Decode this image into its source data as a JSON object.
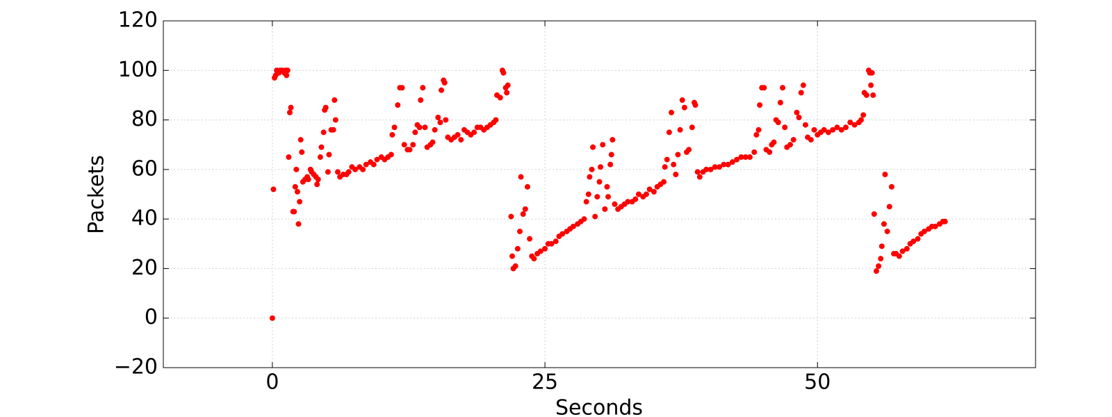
{
  "chart_data": {
    "type": "scatter",
    "xlabel": "Seconds",
    "ylabel": "Packets",
    "color": "#ff0000",
    "grid": true,
    "xlim": [
      -10,
      70
    ],
    "xticks": [
      0,
      25,
      50
    ],
    "ylim": [
      -20,
      120
    ],
    "yticks": [
      {
        "value": -20,
        "label": "−20"
      },
      0,
      20,
      40,
      60,
      80,
      100,
      120
    ],
    "x": [
      0,
      0.1,
      0.2,
      0.3,
      0.4,
      0.6,
      0.7,
      0.9,
      1.1,
      1.2,
      1.3,
      1.4,
      1.5,
      1.6,
      1.7,
      1.9,
      2.0,
      2.1,
      2.2,
      2.3,
      2.4,
      2.5,
      2.6,
      2.7,
      2.8,
      3.0,
      3.2,
      3.3,
      3.5,
      3.6,
      3.8,
      4.0,
      4.1,
      4.2,
      4.4,
      4.5,
      4.7,
      4.8,
      4.9,
      5.1,
      5.2,
      5.4,
      5.6,
      5.7,
      5.8,
      6.0,
      6.2,
      6.5,
      6.8,
      7.0,
      7.3,
      7.6,
      8.0,
      8.3,
      8.6,
      9.0,
      9.3,
      9.6,
      10.0,
      10.3,
      10.6,
      10.9,
      11.0,
      11.2,
      11.5,
      11.7,
      11.9,
      12.1,
      12.4,
      12.6,
      12.9,
      13.1,
      13.3,
      13.5,
      13.6,
      13.8,
      14.0,
      14.2,
      14.5,
      14.7,
      14.9,
      15.2,
      15.4,
      15.5,
      15.7,
      15.8,
      15.9,
      16.1,
      16.4,
      16.7,
      17.0,
      17.3,
      17.6,
      17.9,
      18.2,
      18.5,
      18.8,
      19.1,
      19.4,
      19.7,
      20.0,
      20.3,
      20.5,
      20.6,
      20.9,
      21.1,
      21.2,
      21.4,
      21.5,
      21.6,
      21.9,
      22.0,
      22.1,
      22.3,
      22.5,
      22.7,
      22.8,
      23.0,
      23.2,
      23.4,
      23.6,
      23.8,
      24.0,
      24.3,
      24.6,
      25.0,
      25.3,
      25.6,
      26.0,
      26.3,
      26.6,
      27.0,
      27.3,
      27.6,
      28.0,
      28.3,
      28.6,
      28.8,
      29.0,
      29.1,
      29.3,
      29.4,
      29.6,
      29.8,
      30.0,
      30.1,
      30.3,
      30.5,
      30.7,
      30.8,
      31.0,
      31.1,
      31.2,
      31.4,
      31.7,
      32.0,
      32.3,
      32.6,
      33.0,
      33.3,
      33.6,
      34.0,
      34.3,
      34.6,
      35.0,
      35.3,
      35.6,
      35.9,
      36.0,
      36.2,
      36.4,
      36.6,
      36.8,
      37.0,
      37.2,
      37.4,
      37.6,
      37.8,
      38.0,
      38.2,
      38.5,
      38.7,
      38.8,
      39.0,
      39.2,
      39.5,
      39.8,
      40.2,
      40.6,
      41.0,
      41.4,
      41.8,
      42.2,
      42.6,
      43.0,
      43.4,
      43.8,
      44.2,
      44.4,
      44.6,
      44.7,
      44.9,
      45.1,
      45.3,
      45.6,
      45.8,
      46.0,
      46.2,
      46.4,
      46.6,
      46.8,
      47.0,
      47.2,
      47.5,
      47.8,
      48.1,
      48.3,
      48.5,
      48.7,
      48.9,
      49.1,
      49.4,
      49.7,
      50.0,
      50.3,
      50.6,
      51.0,
      51.4,
      51.8,
      52.2,
      52.6,
      53.0,
      53.4,
      53.8,
      54.0,
      54.2,
      54.3,
      54.5,
      54.7,
      54.8,
      54.9,
      55.0,
      55.1,
      55.2,
      55.4,
      55.6,
      55.8,
      55.9,
      56.1,
      56.2,
      56.4,
      56.6,
      56.8,
      57.0,
      57.2,
      57.5,
      57.8,
      58.2,
      58.5,
      58.8,
      59.2,
      59.5,
      59.8,
      60.2,
      60.5,
      60.8,
      61.2,
      61.5,
      61.7
    ],
    "values": [
      0,
      52,
      97,
      98,
      100,
      99,
      100,
      100,
      99,
      100,
      98,
      100,
      65,
      83,
      85,
      43,
      43,
      53,
      60,
      51,
      38,
      47,
      72,
      67,
      55,
      56,
      57,
      56,
      60,
      59,
      58,
      57,
      54,
      56,
      65,
      69,
      75,
      84,
      85,
      59,
      66,
      76,
      76,
      88,
      80,
      59,
      57,
      58,
      58,
      59,
      61,
      60,
      61,
      60,
      62,
      63,
      62,
      64,
      65,
      64,
      65,
      66,
      74,
      77,
      86,
      93,
      93,
      70,
      68,
      68,
      70,
      75,
      78,
      77,
      88,
      93,
      77,
      69,
      70,
      71,
      76,
      81,
      79,
      92,
      96,
      95,
      80,
      73,
      72,
      73,
      74,
      72,
      76,
      75,
      74,
      75,
      77,
      77,
      76,
      77,
      78,
      79,
      80,
      90,
      89,
      100,
      99,
      93,
      91,
      94,
      41,
      25,
      20,
      21,
      28,
      35,
      57,
      42,
      44,
      53,
      32,
      25,
      24,
      26,
      27,
      28,
      30,
      30,
      31,
      33,
      34,
      35,
      36,
      37,
      38,
      39,
      40,
      47,
      50,
      57,
      60,
      69,
      41,
      49,
      55,
      61,
      70,
      44,
      53,
      49,
      62,
      66,
      72,
      46,
      44,
      45,
      46,
      47,
      47,
      48,
      50,
      49,
      50,
      52,
      51,
      53,
      54,
      55,
      61,
      64,
      75,
      83,
      62,
      58,
      66,
      76,
      88,
      85,
      67,
      68,
      77,
      87,
      86,
      59,
      57,
      59,
      60,
      60,
      61,
      61,
      62,
      62,
      63,
      64,
      65,
      65,
      65,
      67,
      74,
      76,
      86,
      93,
      93,
      68,
      67,
      70,
      71,
      80,
      79,
      87,
      93,
      77,
      69,
      70,
      72,
      83,
      81,
      91,
      94,
      78,
      73,
      72,
      76,
      74,
      75,
      76,
      75,
      76,
      77,
      76,
      77,
      79,
      78,
      79,
      80,
      82,
      91,
      90,
      100,
      99,
      94,
      99,
      90,
      42,
      19,
      21,
      24,
      29,
      38,
      58,
      35,
      45,
      53,
      26,
      26,
      25,
      27,
      28,
      30,
      31,
      32,
      34,
      35,
      36,
      37,
      37,
      38,
      39,
      39
    ]
  }
}
